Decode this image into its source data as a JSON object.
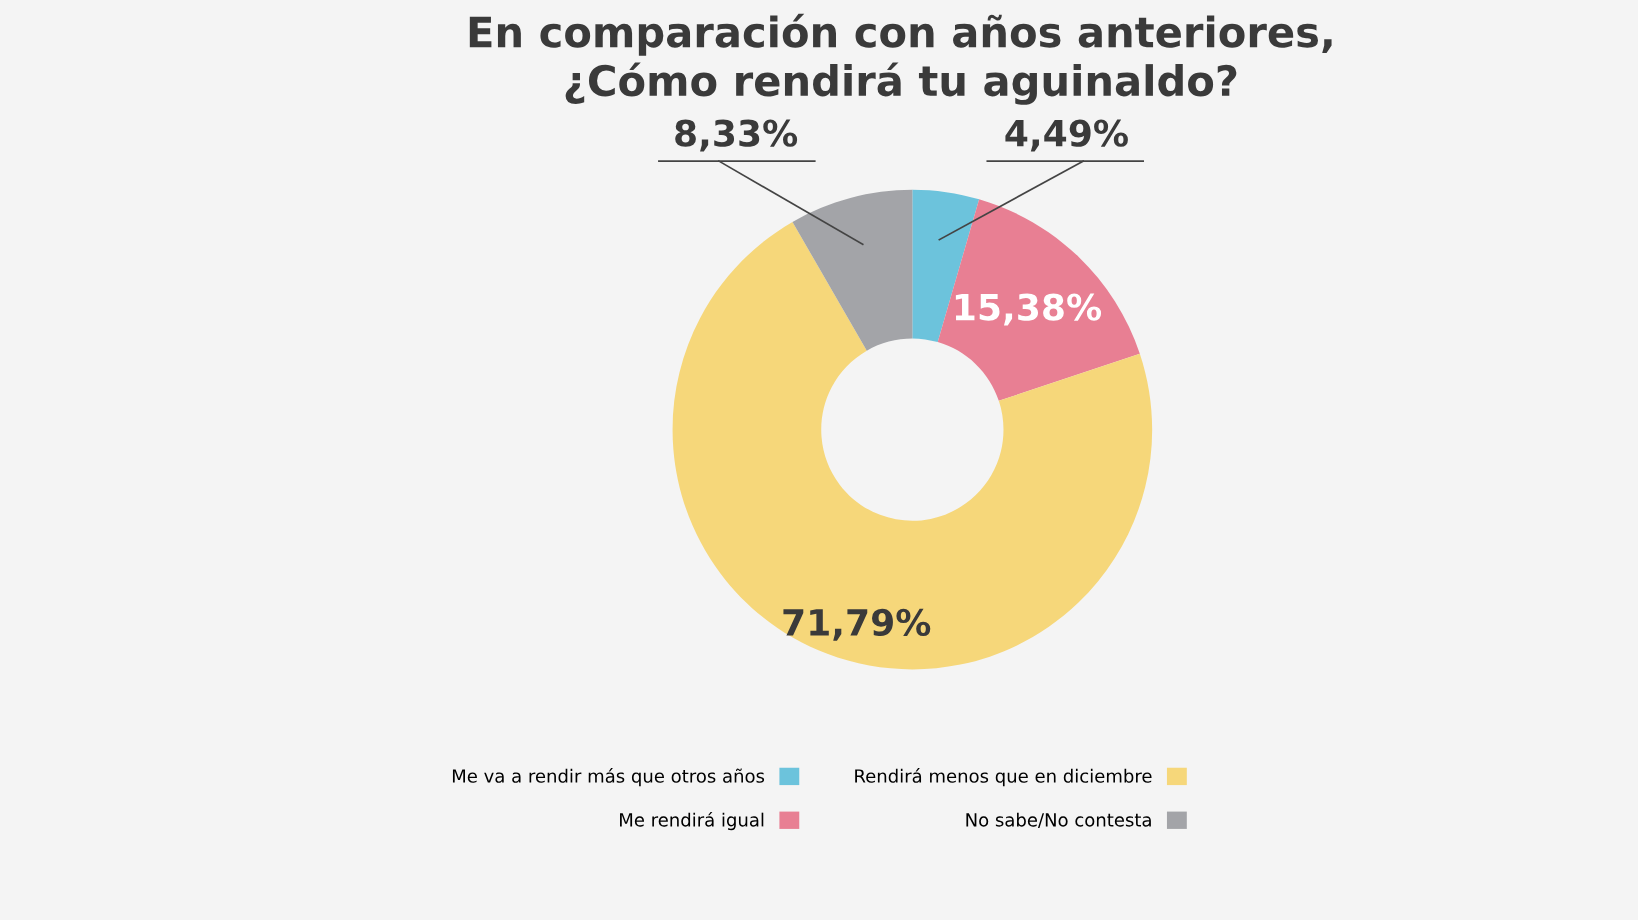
{
  "chart_data": {
    "type": "donut",
    "title": "En comparación con años anteriores,\n¿Cómo rendirá tu aguinaldo?",
    "categories": [
      "Me va a rendir más que otros años",
      "Me rendirá igual",
      "Rendirá menos que en diciembre",
      "No sabe/No contesta"
    ],
    "values": [
      4.49,
      15.38,
      71.79,
      8.33
    ],
    "colors": [
      "#6cc3dc",
      "#e87f93",
      "#f6d77a",
      "#a3a4a8"
    ],
    "value_labels": [
      "4,49%",
      "15,38%",
      "71,79%",
      "8,33%"
    ],
    "legend": "bottom"
  }
}
